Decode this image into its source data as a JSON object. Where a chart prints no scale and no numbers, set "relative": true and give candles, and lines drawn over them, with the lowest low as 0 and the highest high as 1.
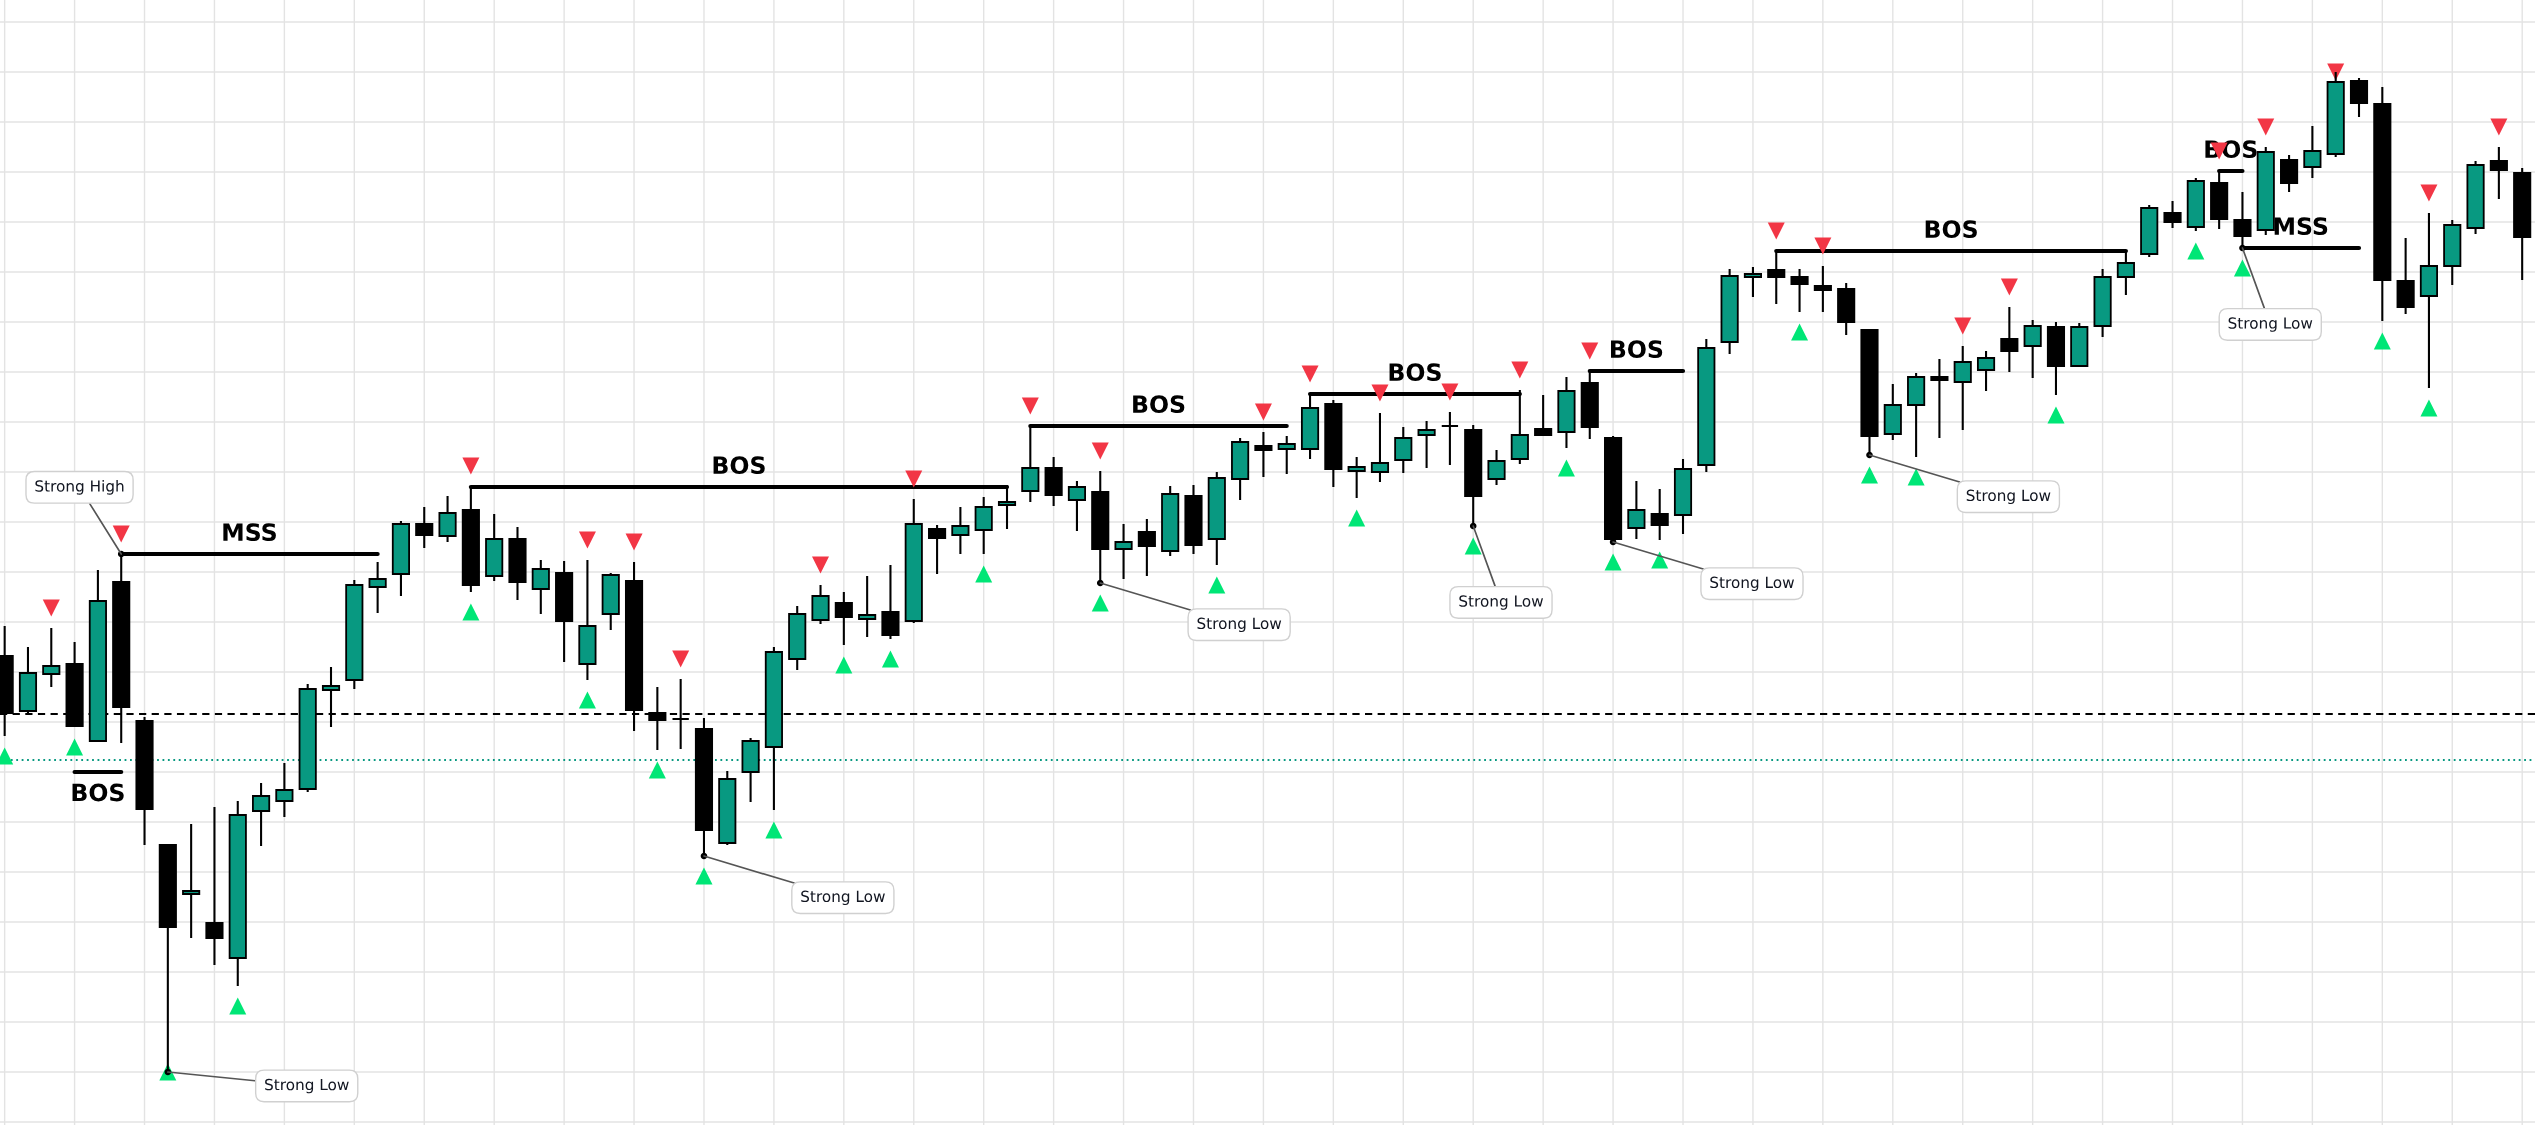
{
  "chart_data": {
    "type": "candlestick",
    "relative": true,
    "grid": true,
    "categories": [
      null,
      null,
      null,
      null,
      null,
      null,
      null,
      null,
      null,
      null,
      null,
      null,
      null,
      null,
      null,
      null,
      null,
      null,
      null,
      null,
      null,
      null,
      null,
      null,
      null,
      null,
      null,
      null,
      null,
      null,
      null,
      null,
      null,
      null,
      null,
      null,
      null,
      null,
      null,
      null,
      null,
      null,
      null,
      null,
      null,
      null,
      null,
      null,
      null,
      null,
      null,
      null,
      null,
      null,
      null,
      null,
      null,
      null,
      null,
      null,
      null,
      null,
      null,
      null,
      null,
      null,
      null,
      null,
      null,
      null,
      null,
      null,
      null,
      null,
      null,
      null,
      null,
      null,
      null,
      null,
      null,
      null,
      null,
      null,
      null,
      null,
      null,
      null,
      null,
      null,
      null,
      null,
      null,
      null,
      null,
      null,
      null,
      null,
      null,
      null,
      null,
      null,
      null,
      null,
      null,
      null,
      null,
      null,
      null
    ],
    "ohlc": [
      [
        0.416,
        0.446,
        0.336,
        0.359
      ],
      [
        0.361,
        0.425,
        0.359,
        0.399
      ],
      [
        0.398,
        0.444,
        0.385,
        0.406
      ],
      [
        0.408,
        0.43,
        0.345,
        0.346
      ],
      [
        0.331,
        0.502,
        0.33,
        0.471
      ],
      [
        0.49,
        0.518,
        0.329,
        0.365
      ],
      [
        0.351,
        0.355,
        0.227,
        0.263
      ],
      [
        0.227,
        0.228,
        0.0,
        0.145
      ],
      [
        0.178,
        0.248,
        0.134,
        0.181
      ],
      [
        0.149,
        0.265,
        0.107,
        0.134
      ],
      [
        0.114,
        0.271,
        0.086,
        0.257
      ],
      [
        0.261,
        0.289,
        0.226,
        0.276
      ],
      [
        0.271,
        0.309,
        0.255,
        0.282
      ],
      [
        0.283,
        0.388,
        0.28,
        0.383
      ],
      [
        0.382,
        0.405,
        0.345,
        0.386
      ],
      [
        0.392,
        0.492,
        0.383,
        0.487
      ],
      [
        0.485,
        0.51,
        0.459,
        0.493
      ],
      [
        0.498,
        0.551,
        0.476,
        0.548
      ],
      [
        0.548,
        0.565,
        0.524,
        0.537
      ],
      [
        0.536,
        0.576,
        0.53,
        0.559
      ],
      [
        0.562,
        0.586,
        0.48,
        0.487
      ],
      [
        0.496,
        0.558,
        0.491,
        0.533
      ],
      [
        0.533,
        0.545,
        0.472,
        0.49
      ],
      [
        0.483,
        0.512,
        0.458,
        0.503
      ],
      [
        0.499,
        0.511,
        0.41,
        0.451
      ],
      [
        0.408,
        0.512,
        0.392,
        0.446
      ],
      [
        0.458,
        0.499,
        0.442,
        0.497
      ],
      [
        0.491,
        0.51,
        0.341,
        0.362
      ],
      [
        0.359,
        0.385,
        0.322,
        0.352
      ],
      [
        0.353,
        0.393,
        0.323,
        0.353
      ],
      [
        0.343,
        0.354,
        0.216,
        0.242
      ],
      [
        0.229,
        0.301,
        0.227,
        0.293
      ],
      [
        0.3,
        0.334,
        0.27,
        0.331
      ],
      [
        0.325,
        0.425,
        0.262,
        0.42
      ],
      [
        0.413,
        0.466,
        0.402,
        0.458
      ],
      [
        0.452,
        0.487,
        0.448,
        0.476
      ],
      [
        0.469,
        0.48,
        0.427,
        0.455
      ],
      [
        0.453,
        0.496,
        0.435,
        0.457
      ],
      [
        0.46,
        0.507,
        0.433,
        0.437
      ],
      [
        0.451,
        0.573,
        0.449,
        0.548
      ],
      [
        0.543,
        0.547,
        0.498,
        0.534
      ],
      [
        0.537,
        0.565,
        0.518,
        0.546
      ],
      [
        0.542,
        0.575,
        0.518,
        0.565
      ],
      [
        0.567,
        0.587,
        0.543,
        0.57
      ],
      [
        0.581,
        0.646,
        0.57,
        0.604
      ],
      [
        0.604,
        0.615,
        0.566,
        0.577
      ],
      [
        0.572,
        0.591,
        0.541,
        0.585
      ],
      [
        0.58,
        0.601,
        0.489,
        0.523
      ],
      [
        0.523,
        0.548,
        0.493,
        0.53
      ],
      [
        0.54,
        0.553,
        0.496,
        0.526
      ],
      [
        0.521,
        0.586,
        0.516,
        0.578
      ],
      [
        0.576,
        0.587,
        0.518,
        0.527
      ],
      [
        0.533,
        0.6,
        0.507,
        0.594
      ],
      [
        0.593,
        0.634,
        0.572,
        0.63
      ],
      [
        0.626,
        0.64,
        0.595,
        0.622
      ],
      [
        0.623,
        0.636,
        0.598,
        0.628
      ],
      [
        0.623,
        0.678,
        0.613,
        0.664
      ],
      [
        0.668,
        0.672,
        0.585,
        0.603
      ],
      [
        0.601,
        0.615,
        0.574,
        0.605
      ],
      [
        0.6,
        0.659,
        0.59,
        0.609
      ],
      [
        0.612,
        0.645,
        0.599,
        0.634
      ],
      [
        0.637,
        0.651,
        0.604,
        0.642
      ],
      [
        0.646,
        0.66,
        0.607,
        0.646
      ],
      [
        0.642,
        0.647,
        0.546,
        0.576
      ],
      [
        0.593,
        0.622,
        0.587,
        0.611
      ],
      [
        0.613,
        0.682,
        0.608,
        0.637
      ],
      [
        0.643,
        0.677,
        0.636,
        0.637
      ],
      [
        0.64,
        0.695,
        0.624,
        0.681
      ],
      [
        0.689,
        0.701,
        0.633,
        0.645
      ],
      [
        0.634,
        0.636,
        0.53,
        0.533
      ],
      [
        0.544,
        0.591,
        0.533,
        0.562
      ],
      [
        0.558,
        0.583,
        0.532,
        0.547
      ],
      [
        0.557,
        0.613,
        0.538,
        0.603
      ],
      [
        0.607,
        0.733,
        0.6,
        0.724
      ],
      [
        0.73,
        0.803,
        0.718,
        0.796
      ],
      [
        0.795,
        0.805,
        0.775,
        0.798
      ],
      [
        0.802,
        0.821,
        0.768,
        0.795
      ],
      [
        0.795,
        0.803,
        0.76,
        0.788
      ],
      [
        0.786,
        0.806,
        0.76,
        0.782
      ],
      [
        0.783,
        0.789,
        0.737,
        0.75
      ],
      [
        0.742,
        0.743,
        0.617,
        0.636
      ],
      [
        0.638,
        0.688,
        0.632,
        0.667
      ],
      [
        0.667,
        0.699,
        0.615,
        0.695
      ],
      [
        0.695,
        0.713,
        0.634,
        0.692
      ],
      [
        0.69,
        0.726,
        0.642,
        0.71
      ],
      [
        0.702,
        0.721,
        0.681,
        0.714
      ],
      [
        0.733,
        0.765,
        0.7,
        0.721
      ],
      [
        0.726,
        0.752,
        0.694,
        0.746
      ],
      [
        0.745,
        0.75,
        0.677,
        0.706
      ],
      [
        0.706,
        0.749,
        0.705,
        0.745
      ],
      [
        0.746,
        0.803,
        0.735,
        0.795
      ],
      [
        0.795,
        0.82,
        0.777,
        0.809
      ],
      [
        0.818,
        0.867,
        0.815,
        0.864
      ],
      [
        0.859,
        0.871,
        0.844,
        0.85
      ],
      [
        0.845,
        0.894,
        0.841,
        0.891
      ],
      [
        0.889,
        0.901,
        0.843,
        0.853
      ],
      [
        0.852,
        0.88,
        0.824,
        0.836
      ],
      [
        0.842,
        0.925,
        0.837,
        0.92
      ],
      [
        0.912,
        0.917,
        0.88,
        0.889
      ],
      [
        0.905,
        0.946,
        0.894,
        0.921
      ],
      [
        0.918,
        1.0,
        0.915,
        0.99
      ],
      [
        0.991,
        0.994,
        0.955,
        0.969
      ],
      [
        0.968,
        0.985,
        0.751,
        0.792
      ],
      [
        0.791,
        0.834,
        0.758,
        0.765
      ],
      [
        0.776,
        0.859,
        0.684,
        0.806
      ],
      [
        0.806,
        0.852,
        0.787,
        0.847
      ],
      [
        0.844,
        0.911,
        0.838,
        0.907
      ],
      [
        0.911,
        0.925,
        0.873,
        0.902
      ],
      [
        0.899,
        0.904,
        0.792,
        0.835
      ]
    ],
    "colors": [
      "#000000",
      "#089981",
      "#089981",
      "#000000",
      "#089981",
      "#000000",
      "#000000",
      "#000000",
      "#089981",
      "#000000",
      "#089981",
      "#089981",
      "#089981",
      "#089981",
      "#089981",
      "#089981",
      "#089981",
      "#089981",
      "#000000",
      "#089981",
      "#000000",
      "#089981",
      "#000000",
      "#089981",
      "#000000",
      "#089981",
      "#089981",
      "#000000",
      "#000000",
      "#000000",
      "#000000",
      "#089981",
      "#089981",
      "#089981",
      "#089981",
      "#089981",
      "#000000",
      "#089981",
      "#000000",
      "#089981",
      "#000000",
      "#089981",
      "#089981",
      "#089981",
      "#089981",
      "#000000",
      "#089981",
      "#000000",
      "#089981",
      "#000000",
      "#089981",
      "#000000",
      "#089981",
      "#089981",
      "#000000",
      "#089981",
      "#089981",
      "#000000",
      "#089981",
      "#089981",
      "#089981",
      "#089981",
      "#000000",
      "#000000",
      "#089981",
      "#089981",
      "#000000",
      "#089981",
      "#000000",
      "#000000",
      "#089981",
      "#000000",
      "#089981",
      "#089981",
      "#089981",
      "#089981",
      "#000000",
      "#000000",
      "#000000",
      "#000000",
      "#000000",
      "#089981",
      "#089981",
      "#000000",
      "#089981",
      "#089981",
      "#000000",
      "#089981",
      "#000000",
      "#089981",
      "#089981",
      "#089981",
      "#089981",
      "#000000",
      "#089981",
      "#000000",
      "#000000",
      "#089981",
      "#000000",
      "#089981",
      "#089981",
      "#000000",
      "#000000",
      "#000000",
      "#089981",
      "#089981",
      "#089981",
      "#000000",
      "#000000"
    ],
    "ref_lines": [
      {
        "axis": "y",
        "value": 0.358,
        "color": "#000000",
        "line_style": "dashed"
      },
      {
        "axis": "y",
        "value": 0.312,
        "color": "#089981",
        "line_style": "dotted"
      }
    ],
    "series": [
      {
        "type": "line",
        "name": "BOS",
        "color": "#000000",
        "line_style": "solid",
        "values": [
          null,
          null,
          null,
          0.3,
          0.3,
          0.3,
          null,
          null,
          null,
          null,
          null,
          null,
          null,
          null,
          null,
          null,
          null,
          null,
          null,
          null,
          null,
          null,
          null,
          null,
          null,
          null,
          null,
          null,
          null,
          null,
          null,
          null,
          null,
          null,
          null,
          null,
          null,
          null,
          null,
          null,
          null,
          null,
          null,
          null,
          null,
          null,
          null,
          null,
          null,
          null,
          null,
          null,
          null,
          null,
          null,
          null,
          null,
          null,
          null,
          null,
          null,
          null,
          null,
          null,
          null,
          null,
          null,
          null,
          null,
          null,
          null,
          null,
          null,
          null,
          null,
          null,
          null,
          null,
          null,
          null,
          null,
          null,
          null,
          null,
          null,
          null,
          null,
          null,
          null,
          null,
          null,
          null,
          null,
          null,
          null,
          null,
          null,
          null,
          null,
          null,
          null,
          null,
          null,
          null,
          null,
          null,
          null,
          null,
          null
        ]
      },
      {
        "type": "line",
        "name": "MSS",
        "color": "#000000",
        "line_style": "solid",
        "values": [
          null,
          null,
          null,
          null,
          null,
          0.518,
          0.518,
          0.518,
          0.518,
          0.518,
          0.518,
          0.518,
          0.518,
          0.518,
          0.518,
          0.518,
          0.518,
          null,
          null,
          null,
          null,
          null,
          null,
          null,
          null,
          null,
          null,
          null,
          null,
          null,
          null,
          null,
          null,
          null,
          null,
          null,
          null,
          null,
          null,
          null,
          null,
          null,
          null,
          null,
          null,
          null,
          null,
          null,
          null,
          null,
          null,
          null,
          null,
          null,
          null,
          null,
          null,
          null,
          null,
          null,
          null,
          null,
          null,
          null,
          null,
          null,
          null,
          null,
          null,
          null,
          null,
          null,
          null,
          null,
          null,
          null,
          null,
          null,
          null,
          null,
          null,
          null,
          null,
          null,
          null,
          null,
          null,
          null,
          null,
          null,
          null,
          null,
          null,
          null,
          null,
          null,
          null,
          null,
          null,
          null,
          null,
          null,
          null,
          null,
          null,
          null,
          null,
          null,
          null
        ]
      },
      {
        "type": "line",
        "name": "BOS",
        "color": "#000000",
        "line_style": "solid",
        "values": [
          null,
          null,
          null,
          null,
          null,
          null,
          null,
          null,
          null,
          null,
          null,
          null,
          null,
          null,
          null,
          null,
          null,
          null,
          null,
          null,
          0.585,
          0.585,
          0.585,
          0.585,
          0.585,
          0.585,
          0.585,
          0.585,
          0.585,
          0.585,
          0.585,
          0.585,
          0.585,
          0.585,
          0.585,
          0.585,
          0.585,
          0.585,
          0.585,
          0.585,
          0.585,
          0.585,
          0.585,
          0.585,
          null,
          null,
          null,
          null,
          null,
          null,
          null,
          null,
          null,
          null,
          null,
          null,
          null,
          null,
          null,
          null,
          null,
          null,
          null,
          null,
          null,
          null,
          null,
          null,
          null,
          null,
          null,
          null,
          null,
          null,
          null,
          null,
          null,
          null,
          null,
          null,
          null,
          null,
          null,
          null,
          null,
          null,
          null,
          null,
          null,
          null,
          null,
          null,
          null,
          null,
          null,
          null,
          null,
          null,
          null,
          null,
          null,
          null,
          null,
          null,
          null,
          null,
          null,
          null,
          null
        ]
      },
      {
        "type": "line",
        "name": "BOS",
        "color": "#000000",
        "line_style": "solid",
        "values": [
          null,
          null,
          null,
          null,
          null,
          null,
          null,
          null,
          null,
          null,
          null,
          null,
          null,
          null,
          null,
          null,
          null,
          null,
          null,
          null,
          null,
          null,
          null,
          null,
          null,
          null,
          null,
          null,
          null,
          null,
          null,
          null,
          null,
          null,
          null,
          null,
          null,
          null,
          null,
          null,
          null,
          null,
          null,
          null,
          0.646,
          0.646,
          0.646,
          0.646,
          0.646,
          0.646,
          0.646,
          0.646,
          0.646,
          0.646,
          0.646,
          0.646,
          null,
          null,
          null,
          null,
          null,
          null,
          null,
          null,
          null,
          null,
          null,
          null,
          null,
          null,
          null,
          null,
          null,
          null,
          null,
          null,
          null,
          null,
          null,
          null,
          null,
          null,
          null,
          null,
          null,
          null,
          null,
          null,
          null,
          null,
          null,
          null,
          null,
          null,
          null,
          null,
          null,
          null,
          null,
          null,
          null,
          null,
          null,
          null,
          null,
          null,
          null,
          null,
          null
        ]
      },
      {
        "type": "line",
        "name": "BOS",
        "color": "#000000",
        "line_style": "solid",
        "values": [
          null,
          null,
          null,
          null,
          null,
          null,
          null,
          null,
          null,
          null,
          null,
          null,
          null,
          null,
          null,
          null,
          null,
          null,
          null,
          null,
          null,
          null,
          null,
          null,
          null,
          null,
          null,
          null,
          null,
          null,
          null,
          null,
          null,
          null,
          null,
          null,
          null,
          null,
          null,
          null,
          null,
          null,
          null,
          null,
          null,
          null,
          null,
          null,
          null,
          null,
          null,
          null,
          null,
          null,
          null,
          null,
          0.678,
          0.678,
          0.678,
          0.678,
          0.678,
          0.678,
          0.678,
          0.678,
          0.678,
          0.678,
          null,
          null,
          null,
          null,
          null,
          null,
          null,
          null,
          null,
          null,
          null,
          null,
          null,
          null,
          null,
          null,
          null,
          null,
          null,
          null,
          null,
          null,
          null,
          null,
          null,
          null,
          null,
          null,
          null,
          null,
          null,
          null,
          null,
          null,
          null,
          null,
          null,
          null,
          null,
          null,
          null,
          null,
          null
        ]
      },
      {
        "type": "line",
        "name": "BOS",
        "color": "#000000",
        "line_style": "solid",
        "values": [
          null,
          null,
          null,
          null,
          null,
          null,
          null,
          null,
          null,
          null,
          null,
          null,
          null,
          null,
          null,
          null,
          null,
          null,
          null,
          null,
          null,
          null,
          null,
          null,
          null,
          null,
          null,
          null,
          null,
          null,
          null,
          null,
          null,
          null,
          null,
          null,
          null,
          null,
          null,
          null,
          null,
          null,
          null,
          null,
          null,
          null,
          null,
          null,
          null,
          null,
          null,
          null,
          null,
          null,
          null,
          null,
          null,
          null,
          null,
          null,
          null,
          null,
          null,
          null,
          null,
          null,
          null,
          null,
          0.701,
          0.701,
          0.701,
          0.701,
          0.701,
          null,
          null,
          null,
          null,
          null,
          null,
          null,
          null,
          null,
          null,
          null,
          null,
          null,
          null,
          null,
          null,
          null,
          null,
          null,
          null,
          null,
          null,
          null,
          null,
          null,
          null,
          null,
          null,
          null,
          null,
          null,
          null,
          null,
          null,
          null,
          null
        ]
      },
      {
        "type": "line",
        "name": "BOS",
        "color": "#000000",
        "line_style": "solid",
        "values": [
          null,
          null,
          null,
          null,
          null,
          null,
          null,
          null,
          null,
          null,
          null,
          null,
          null,
          null,
          null,
          null,
          null,
          null,
          null,
          null,
          null,
          null,
          null,
          null,
          null,
          null,
          null,
          null,
          null,
          null,
          null,
          null,
          null,
          null,
          null,
          null,
          null,
          null,
          null,
          null,
          null,
          null,
          null,
          null,
          null,
          null,
          null,
          null,
          null,
          null,
          null,
          null,
          null,
          null,
          null,
          null,
          null,
          null,
          null,
          null,
          null,
          null,
          null,
          null,
          null,
          null,
          null,
          null,
          null,
          null,
          null,
          null,
          null,
          null,
          null,
          null,
          0.821,
          0.821,
          0.821,
          0.821,
          0.821,
          0.821,
          0.821,
          0.821,
          0.821,
          0.821,
          0.821,
          0.821,
          0.821,
          0.821,
          0.821,
          0.821,
          null,
          null,
          null,
          null,
          null,
          null,
          null,
          null,
          null,
          null,
          null,
          null,
          null,
          null,
          null,
          null,
          null
        ]
      },
      {
        "type": "line",
        "name": "BOS",
        "color": "#000000",
        "line_style": "solid",
        "values": [
          null,
          null,
          null,
          null,
          null,
          null,
          null,
          null,
          null,
          null,
          null,
          null,
          null,
          null,
          null,
          null,
          null,
          null,
          null,
          null,
          null,
          null,
          null,
          null,
          null,
          null,
          null,
          null,
          null,
          null,
          null,
          null,
          null,
          null,
          null,
          null,
          null,
          null,
          null,
          null,
          null,
          null,
          null,
          null,
          null,
          null,
          null,
          null,
          null,
          null,
          null,
          null,
          null,
          null,
          null,
          null,
          null,
          null,
          null,
          null,
          null,
          null,
          null,
          null,
          null,
          null,
          null,
          null,
          null,
          null,
          null,
          null,
          null,
          null,
          null,
          null,
          null,
          null,
          null,
          null,
          null,
          null,
          null,
          null,
          null,
          null,
          null,
          null,
          null,
          null,
          null,
          null,
          null,
          null,
          null,
          0.901,
          0.901,
          null,
          null,
          null,
          null,
          null,
          null,
          null,
          null,
          null,
          null,
          null,
          null
        ]
      },
      {
        "type": "line",
        "name": "MSS",
        "color": "#000000",
        "line_style": "solid",
        "values": [
          null,
          null,
          null,
          null,
          null,
          null,
          null,
          null,
          null,
          null,
          null,
          null,
          null,
          null,
          null,
          null,
          null,
          null,
          null,
          null,
          null,
          null,
          null,
          null,
          null,
          null,
          null,
          null,
          null,
          null,
          null,
          null,
          null,
          null,
          null,
          null,
          null,
          null,
          null,
          null,
          null,
          null,
          null,
          null,
          null,
          null,
          null,
          null,
          null,
          null,
          null,
          null,
          null,
          null,
          null,
          null,
          null,
          null,
          null,
          null,
          null,
          null,
          null,
          null,
          null,
          null,
          null,
          null,
          null,
          null,
          null,
          null,
          null,
          null,
          null,
          null,
          null,
          null,
          null,
          null,
          null,
          null,
          null,
          null,
          null,
          null,
          null,
          null,
          null,
          null,
          null,
          null,
          null,
          null,
          null,
          null,
          0.824,
          0.824,
          0.824,
          0.824,
          0.824,
          0.824,
          null,
          null,
          null,
          null,
          null,
          null,
          null
        ]
      },
      {
        "type": "scatter",
        "marker": "triangle",
        "color": "#f23645",
        "values": [
          null,
          null,
          0.464,
          null,
          null,
          0.538,
          null,
          null,
          null,
          null,
          null,
          null,
          null,
          null,
          null,
          null,
          null,
          null,
          null,
          null,
          0.606,
          null,
          null,
          null,
          null,
          0.532,
          null,
          0.53,
          null,
          0.413,
          null,
          null,
          null,
          null,
          null,
          0.507,
          null,
          null,
          null,
          0.593,
          null,
          null,
          null,
          null,
          0.666,
          null,
          null,
          0.621,
          null,
          null,
          null,
          null,
          null,
          null,
          0.66,
          null,
          0.698,
          null,
          null,
          0.679,
          null,
          null,
          0.68,
          null,
          null,
          0.702,
          null,
          null,
          0.721,
          null,
          null,
          null,
          null,
          null,
          null,
          null,
          0.841,
          null,
          0.826,
          null,
          null,
          null,
          null,
          null,
          0.746,
          null,
          0.785,
          null,
          null,
          null,
          null,
          null,
          null,
          null,
          null,
          0.921,
          null,
          0.945,
          null,
          null,
          1.0,
          null,
          null,
          null,
          0.879,
          null,
          null,
          0.945,
          null
        ]
      },
      {
        "type": "scatter",
        "marker": "triangle",
        "color": "#00e676",
        "values": [
          0.316,
          null,
          null,
          0.325,
          null,
          null,
          null,
          0,
          null,
          null,
          0.066,
          null,
          null,
          null,
          null,
          null,
          null,
          null,
          null,
          null,
          0.46,
          null,
          null,
          null,
          null,
          0.372,
          null,
          null,
          0.302,
          null,
          0.196,
          null,
          null,
          0.242,
          null,
          null,
          0.407,
          null,
          0.413,
          null,
          null,
          null,
          0.498,
          null,
          null,
          null,
          null,
          0.469,
          null,
          null,
          null,
          null,
          0.487,
          null,
          null,
          null,
          null,
          null,
          0.554,
          null,
          null,
          null,
          null,
          0.526,
          null,
          null,
          null,
          0.604,
          null,
          0.51,
          null,
          0.512,
          null,
          null,
          null,
          null,
          null,
          0.74,
          null,
          null,
          0.597,
          null,
          0.595,
          null,
          null,
          null,
          null,
          null,
          0.657,
          null,
          null,
          null,
          null,
          null,
          0.821,
          null,
          0.804,
          null,
          null,
          null,
          null,
          null,
          0.731,
          null,
          0.664,
          null,
          null,
          null,
          null
        ]
      },
      {
        "type": "scatter",
        "marker": "circle",
        "name": "Strong High",
        "color": "#000000",
        "values": [
          null,
          null,
          null,
          null,
          null,
          0.518,
          null,
          null,
          null,
          null,
          null,
          null,
          null,
          null,
          null,
          null,
          null,
          null,
          null,
          null,
          null,
          null,
          null,
          null,
          null,
          null,
          null,
          null,
          null,
          null,
          null,
          null,
          null,
          null,
          null,
          null,
          null,
          null,
          null,
          null,
          null,
          null,
          null,
          null,
          null,
          null,
          null,
          null,
          null,
          null,
          null,
          null,
          null,
          null,
          null,
          null,
          null,
          null,
          null,
          null,
          null,
          null,
          null,
          null,
          null,
          null,
          null,
          null,
          null,
          null,
          null,
          null,
          null,
          null,
          null,
          null,
          null,
          null,
          null,
          null,
          null,
          null,
          null,
          null,
          null,
          null,
          null,
          null,
          null,
          null,
          null,
          null,
          null,
          null,
          null,
          null,
          null,
          null,
          null,
          null,
          null,
          null,
          null,
          null,
          null,
          null,
          null,
          null,
          null
        ]
      },
      {
        "type": "scatter",
        "marker": "circle",
        "name": "Strong Low",
        "color": "#000000",
        "values": [
          null,
          null,
          null,
          null,
          null,
          null,
          null,
          0,
          null,
          null,
          null,
          null,
          null,
          null,
          null,
          null,
          null,
          null,
          null,
          null,
          null,
          null,
          null,
          null,
          null,
          null,
          null,
          null,
          null,
          null,
          0.216,
          null,
          null,
          null,
          null,
          null,
          null,
          null,
          null,
          null,
          null,
          null,
          null,
          null,
          null,
          null,
          null,
          0.489,
          null,
          null,
          null,
          null,
          null,
          null,
          null,
          null,
          null,
          null,
          null,
          null,
          null,
          null,
          null,
          0.546,
          null,
          null,
          null,
          null,
          null,
          0.53,
          null,
          null,
          null,
          null,
          null,
          null,
          null,
          null,
          null,
          null,
          0.617,
          null,
          null,
          null,
          null,
          null,
          null,
          null,
          null,
          null,
          null,
          null,
          null,
          null,
          null,
          null,
          0.824,
          null,
          null,
          null,
          null,
          null,
          null,
          null,
          null,
          null,
          null,
          null,
          null
        ]
      }
    ]
  }
}
